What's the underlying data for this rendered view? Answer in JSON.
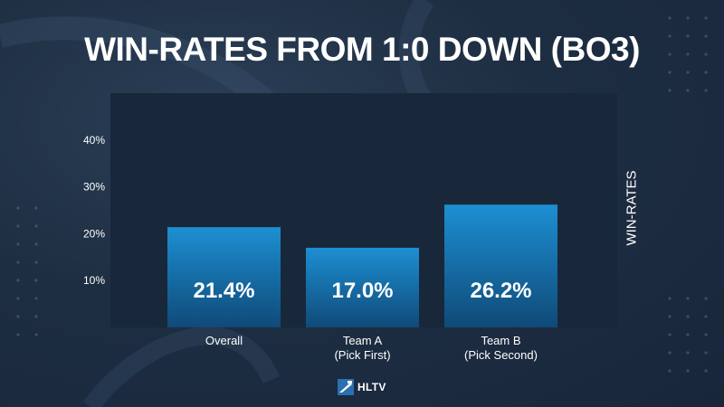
{
  "chart_data": {
    "type": "bar",
    "title": "WIN-RATES FROM 1:0 DOWN (BO3)",
    "ylabel": "WIN-RATES",
    "categories": [
      {
        "line1": "Overall",
        "line2": ""
      },
      {
        "line1": "Team A",
        "line2": "(Pick First)"
      },
      {
        "line1": "Team B",
        "line2": "(Pick Second)"
      }
    ],
    "values": [
      21.4,
      17.0,
      26.2
    ],
    "value_labels": [
      "21.4%",
      "17.0%",
      "26.2%"
    ],
    "yticks": [
      10,
      20,
      30,
      40
    ],
    "ytick_labels": [
      "10%",
      "20%",
      "30%",
      "40%"
    ],
    "ylim": [
      0,
      50
    ],
    "grid": false,
    "legend": "none",
    "colors": {
      "bar_top": "#1d8fd3",
      "bar_bottom": "#0f4a78",
      "plot_bg": "#18283a"
    }
  },
  "brand": {
    "name": "HLTV"
  }
}
